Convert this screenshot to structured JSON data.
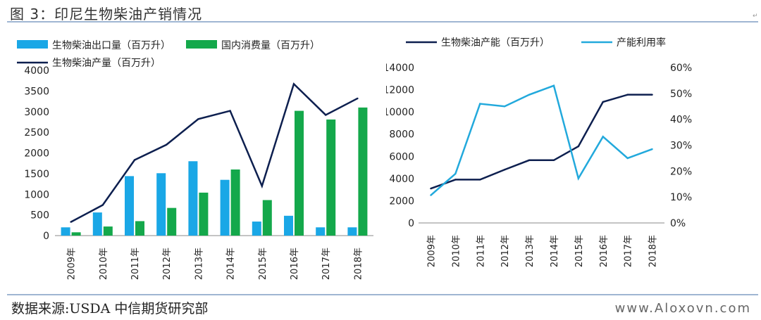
{
  "figure_title": "图 3：印尼生物柴油产销情况",
  "source": "数据来源:USDA 中信期货研究部",
  "watermark": "www.Aloxovn.com",
  "colors": {
    "export": "#1aa7e6",
    "consumption": "#14a84b",
    "production": "#0d1f4f",
    "utilization": "#22a9dc"
  },
  "chart_data": [
    {
      "type": "bar",
      "categories": [
        "2009年",
        "2010年",
        "2011年",
        "2012年",
        "2013年",
        "2014年",
        "2015年",
        "2016年",
        "2017年",
        "2018年"
      ],
      "series": [
        {
          "name": "生物柴油出口量（百万升）",
          "kind": "bar",
          "values": [
            200,
            560,
            1440,
            1510,
            1800,
            1350,
            340,
            480,
            200,
            200
          ]
        },
        {
          "name": "国内消费量（百万升）",
          "kind": "bar",
          "values": [
            80,
            220,
            350,
            670,
            1040,
            1600,
            860,
            3020,
            2810,
            3100
          ]
        },
        {
          "name": "生物柴油产量（百万升）",
          "kind": "line",
          "values": [
            330,
            740,
            1830,
            2200,
            2820,
            3020,
            1200,
            3670,
            2920,
            3320
          ]
        }
      ],
      "ylim": [
        0,
        4000
      ],
      "yticks": [
        0,
        500,
        1000,
        1500,
        2000,
        2500,
        3000,
        3500,
        4000
      ],
      "legend_position": "top"
    },
    {
      "type": "line",
      "categories": [
        "2009年",
        "2010年",
        "2011年",
        "2012年",
        "2013年",
        "2014年",
        "2015年",
        "2016年",
        "2017年",
        "2018年"
      ],
      "series": [
        {
          "name": "生物柴油产能（百万升）",
          "axis": "left",
          "values": [
            3100,
            3900,
            3900,
            4800,
            5650,
            5650,
            6900,
            10900,
            11550,
            11550
          ]
        },
        {
          "name": "产能利用率",
          "axis": "right",
          "values": [
            0.107,
            0.19,
            0.46,
            0.45,
            0.495,
            0.53,
            0.172,
            0.333,
            0.25,
            0.285
          ]
        }
      ],
      "ylim_left": [
        0,
        14000
      ],
      "yticks_left": [
        0,
        2000,
        4000,
        6000,
        8000,
        10000,
        12000,
        14000
      ],
      "ylim_right": [
        0,
        0.6
      ],
      "yticks_right": [
        "0%",
        "10%",
        "20%",
        "30%",
        "40%",
        "50%",
        "60%"
      ],
      "legend_position": "top"
    }
  ]
}
